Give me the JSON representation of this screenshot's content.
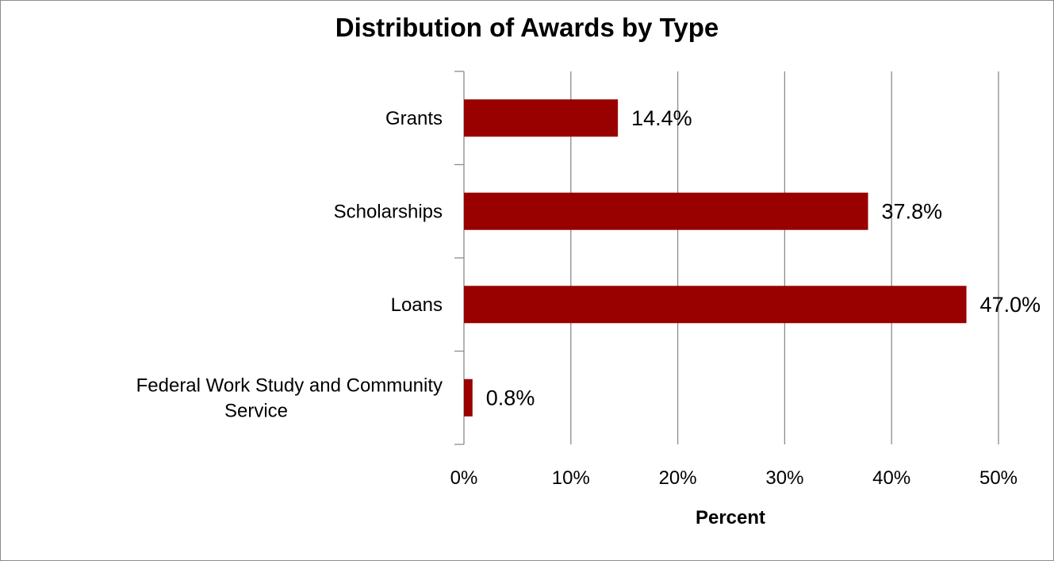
{
  "chart_data": {
    "type": "bar",
    "orientation": "horizontal",
    "title": "Distribution of Awards by Type",
    "xlabel": "Percent",
    "ylabel": "",
    "categories": [
      "Grants",
      "Scholarships",
      "Loans",
      "Federal Work Study and Community Service"
    ],
    "category_label_lines": [
      [
        "Grants"
      ],
      [
        "Scholarships"
      ],
      [
        "Loans"
      ],
      [
        "Federal Work Study and Community",
        "Service"
      ]
    ],
    "values": [
      14.4,
      37.8,
      47.0,
      0.8
    ],
    "data_labels": [
      "14.4%",
      "37.8%",
      "47.0%",
      "0.8%"
    ],
    "xlim": [
      0,
      50
    ],
    "x_ticks": [
      0,
      10,
      20,
      30,
      40,
      50
    ],
    "x_tick_labels": [
      "0%",
      "10%",
      "20%",
      "30%",
      "40%",
      "50%"
    ],
    "grid": "vertical",
    "legend": "none",
    "colors": {
      "bar": "#990000",
      "grid": "#8c8c8c",
      "axis": "#8c8c8c",
      "frame": "#8c8c8c"
    }
  }
}
